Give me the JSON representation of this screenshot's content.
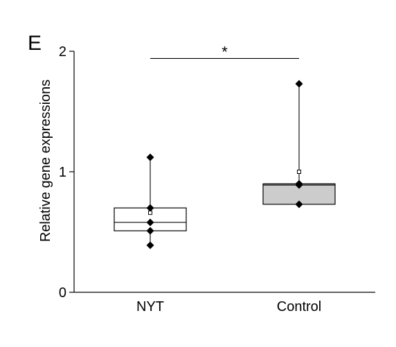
{
  "panel_letter": "E",
  "chart_data": {
    "type": "box",
    "title": "",
    "xlabel": "",
    "ylabel": "Relative gene expressions",
    "ylim": [
      0,
      2
    ],
    "yticks": [
      0,
      1,
      2
    ],
    "yticklabels": [
      "0",
      "1",
      "2"
    ],
    "grid": false,
    "categories": [
      "NYT",
      "Control"
    ],
    "boxes": [
      {
        "category": "NYT",
        "fill": "#ffffff",
        "min": 0.39,
        "q1": 0.51,
        "median": 0.58,
        "q3": 0.7,
        "max": 1.12,
        "mean": 0.66,
        "points": [
          0.39,
          0.51,
          0.58,
          0.7,
          1.12
        ]
      },
      {
        "category": "Control",
        "fill": "#cccccc",
        "min": 0.73,
        "q1": 0.73,
        "median": 0.89,
        "q3": 0.9,
        "max": 1.73,
        "mean": 1.0,
        "points": [
          0.73,
          0.89,
          0.9,
          1.73
        ]
      }
    ],
    "significance": {
      "from": "NYT",
      "to": "Control",
      "y": 1.94,
      "label": "*"
    }
  }
}
